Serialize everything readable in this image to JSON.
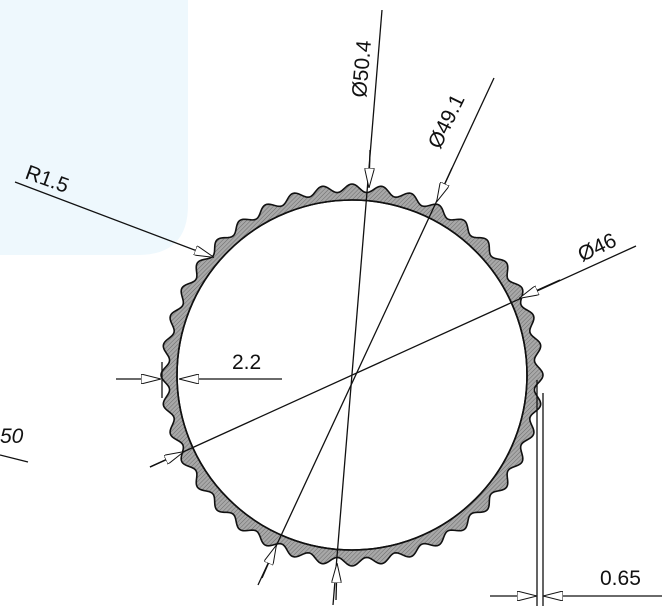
{
  "drawing": {
    "dimensions": {
      "radius_corner": "R1.5",
      "outer_diameter": "Ø50.4",
      "mid_diameter": "Ø49.1",
      "inner_diameter": "Ø46",
      "wall_thickness": "2.2",
      "groove_depth": "0.65",
      "partial_left_label": "50"
    },
    "ridge_count": 40,
    "colors": {
      "line": "#111111",
      "section_fill": "#9a9a9a",
      "background_shape": "#eef8fd"
    }
  }
}
